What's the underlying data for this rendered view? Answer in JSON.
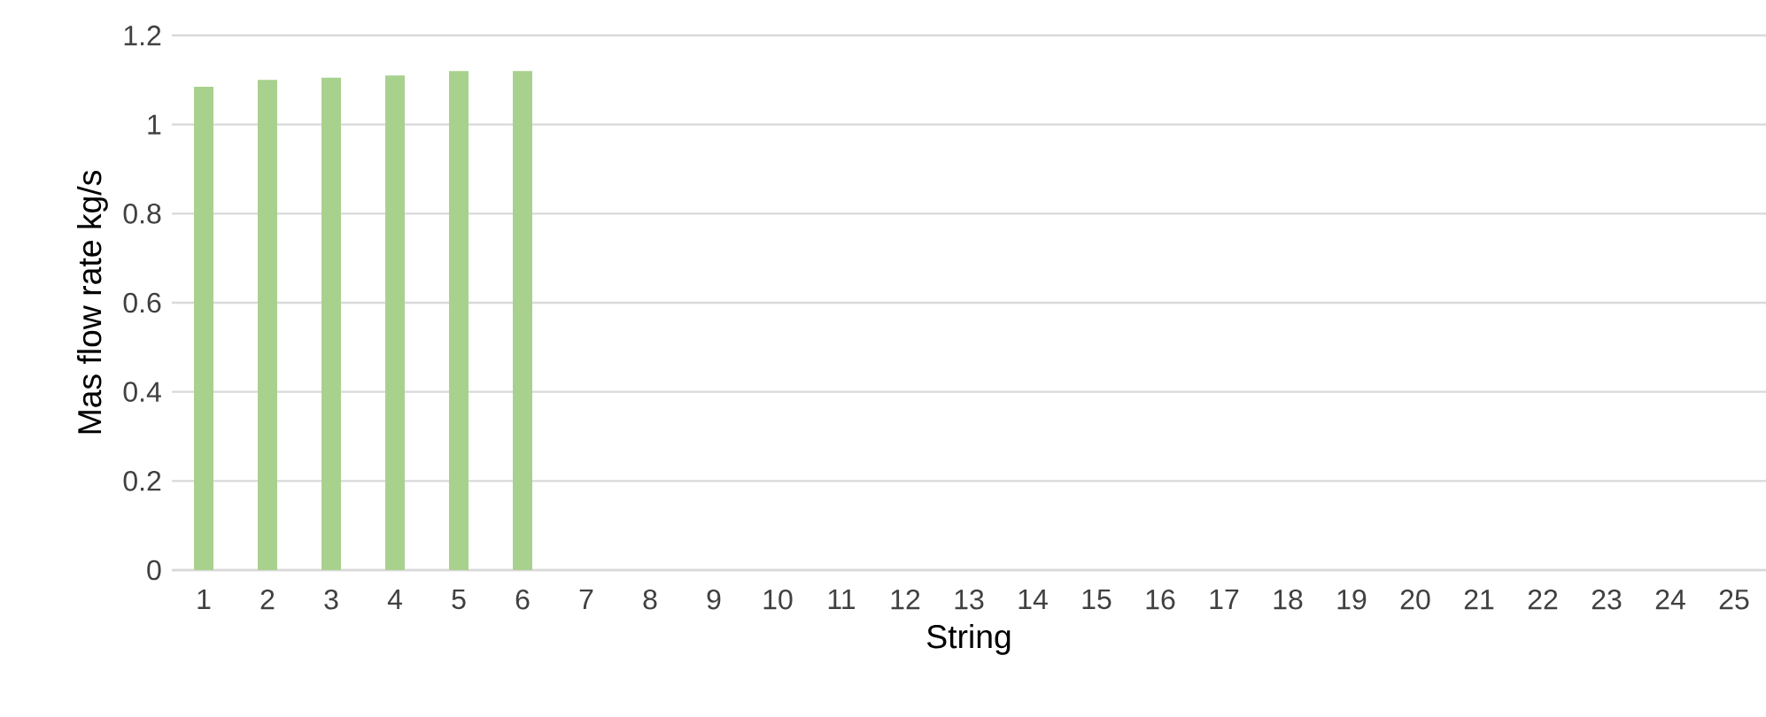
{
  "chart_data": {
    "type": "bar",
    "xlabel": "String",
    "ylabel": "Mas flow rate   kg/s",
    "categories": [
      "1",
      "2",
      "3",
      "4",
      "5",
      "6",
      "7",
      "8",
      "9",
      "10",
      "11",
      "12",
      "13",
      "14",
      "15",
      "16",
      "17",
      "18",
      "19",
      "20",
      "21",
      "22",
      "23",
      "24",
      "25"
    ],
    "values": [
      1.085,
      1.1,
      1.105,
      1.11,
      1.12,
      1.12,
      null,
      null,
      null,
      null,
      null,
      null,
      null,
      null,
      null,
      null,
      null,
      null,
      null,
      null,
      null,
      null,
      null,
      null,
      null
    ],
    "color": "#a9d18e",
    "ylim": [
      0,
      1.2
    ],
    "yticks": [
      0,
      0.2,
      0.4,
      0.6,
      0.8,
      1,
      1.2
    ],
    "grid": "y"
  }
}
